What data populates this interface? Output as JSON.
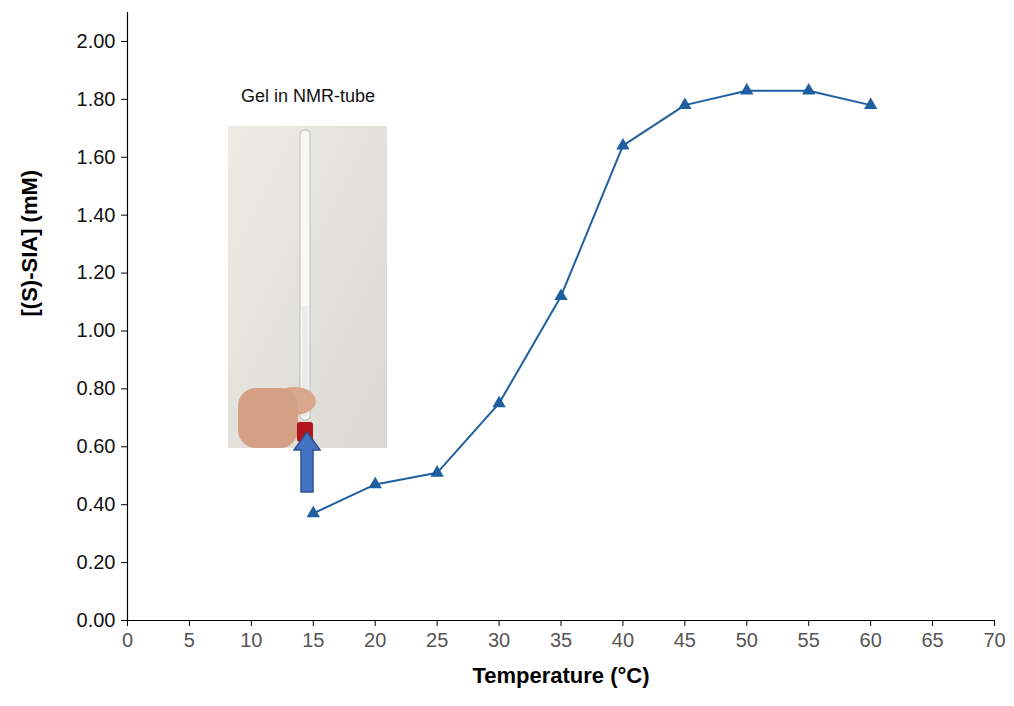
{
  "chart_data": {
    "type": "line",
    "x_label": "Temperature (°C)",
    "y_label": "[(S)-SIA] (mM)",
    "annotation": "Gel in NMR-tube",
    "x": [
      15,
      20,
      25,
      30,
      35,
      40,
      45,
      50,
      55,
      60
    ],
    "values": [
      0.37,
      0.47,
      0.51,
      0.75,
      1.12,
      1.64,
      1.78,
      1.83,
      1.83,
      1.78
    ],
    "color": "#1f5fa0",
    "marker": "triangle",
    "xlim": [
      0,
      70
    ],
    "xticks": [
      0,
      5,
      10,
      15,
      20,
      25,
      30,
      35,
      40,
      45,
      50,
      55,
      60,
      65,
      70
    ],
    "ylim": [
      0,
      2.1
    ],
    "yticks": [
      {
        "value": 0,
        "label": "0.00"
      },
      {
        "value": 0.2,
        "label": "0.20"
      },
      {
        "value": 0.4,
        "label": "0.40"
      },
      {
        "value": 0.6,
        "label": "0.60"
      },
      {
        "value": 0.8,
        "label": "0.80"
      },
      {
        "value": 1,
        "label": "1.00"
      },
      {
        "value": 1.2,
        "label": "1.20"
      },
      {
        "value": 1.4,
        "label": "1.40"
      },
      {
        "value": 1.6,
        "label": "1.60"
      },
      {
        "value": 1.8,
        "label": "1.80"
      },
      {
        "value": 2,
        "label": "2.00"
      }
    ],
    "grid": false
  }
}
